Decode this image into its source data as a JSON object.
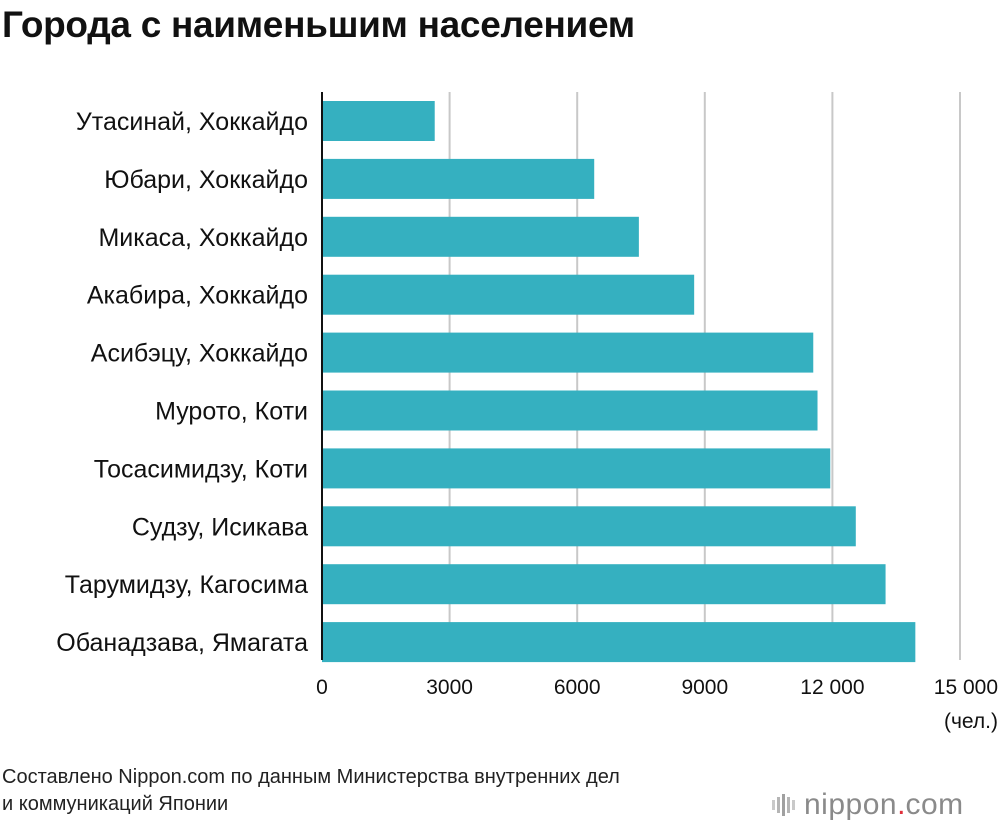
{
  "title": "Города с наименьшим населением",
  "footer": {
    "line1": "Составлено Nippon.com по данным Министерства внутренних дел",
    "line2": "и коммуникаций Японии"
  },
  "logo": {
    "name": "nippon",
    "dot": ".",
    "suffix": "com",
    "icon": "nippon-bars-icon"
  },
  "colors": {
    "bar": "#35b0c0",
    "grid": "#c8c8c8",
    "axis": "#111111",
    "accent": "#e0303b"
  },
  "chart_data": {
    "type": "bar",
    "orientation": "horizontal",
    "title": "Города с наименьшим населением",
    "unit_label": "(чел.)",
    "categories": [
      "Утасинай, Хоккайдо",
      "Юбари, Хоккайдо",
      "Микаса, Хоккайдо",
      "Акабира, Хоккайдо",
      "Асибэцу, Хоккайдо",
      "Мурото, Коти",
      "Тосасимидзу, Коти",
      "Судзу, Исикава",
      "Тарумидзу, Кагосима",
      "Обанадзава, Ямагата"
    ],
    "values": [
      2650,
      6400,
      7450,
      8750,
      11550,
      11650,
      11950,
      12550,
      13250,
      13950
    ],
    "xlim": [
      0,
      15000
    ],
    "ticks": [
      0,
      3000,
      6000,
      9000,
      12000,
      15000
    ],
    "tick_labels": [
      "0",
      "3000",
      "6000",
      "9000",
      "12 000",
      "15 000"
    ],
    "grid": true,
    "legend": "none"
  }
}
